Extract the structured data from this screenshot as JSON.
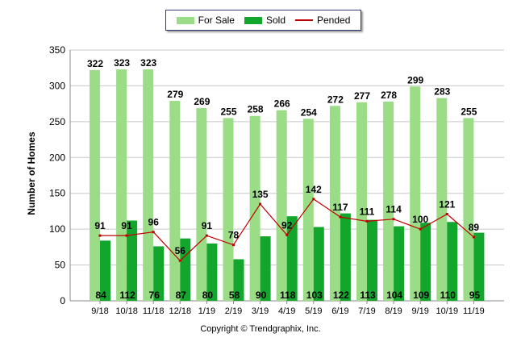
{
  "legend": {
    "for_sale": "For Sale",
    "sold": "Sold",
    "pended": "Pended"
  },
  "copyright": "Copyright © Trendgraphix, Inc.",
  "colors": {
    "for_sale": "#9bdc86",
    "sold": "#12a72c",
    "pended": "#c00000",
    "grid": "#c8c8c8"
  },
  "chart_data": {
    "type": "bar",
    "ylabel": "Number of Homes",
    "xlabel": "",
    "ylim": [
      0,
      350
    ],
    "yticks": [
      0,
      50,
      100,
      150,
      200,
      250,
      300,
      350
    ],
    "grid": true,
    "legend_position": "top-center",
    "categories": [
      "9/18",
      "10/18",
      "11/18",
      "12/18",
      "1/19",
      "2/19",
      "3/19",
      "4/19",
      "5/19",
      "6/19",
      "7/19",
      "8/19",
      "9/19",
      "10/19",
      "11/19"
    ],
    "series": [
      {
        "name": "For Sale",
        "type": "bar",
        "values": [
          322,
          323,
          323,
          279,
          269,
          255,
          258,
          266,
          254,
          272,
          277,
          278,
          299,
          283,
          255
        ]
      },
      {
        "name": "Sold",
        "type": "bar",
        "values": [
          84,
          112,
          76,
          87,
          80,
          58,
          90,
          118,
          103,
          122,
          113,
          104,
          109,
          110,
          95
        ]
      },
      {
        "name": "Pended",
        "type": "line",
        "values": [
          91,
          91,
          96,
          56,
          91,
          78,
          135,
          92,
          142,
          117,
          111,
          114,
          100,
          121,
          89
        ]
      }
    ]
  }
}
